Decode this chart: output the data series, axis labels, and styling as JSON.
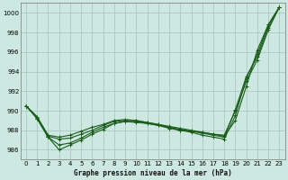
{
  "background_color": "#cce8e0",
  "grid_color": "#aac8c0",
  "line_color": "#1a5c1a",
  "xlabel": "Graphe pression niveau de la mer (hPa)",
  "ylim": [
    985.0,
    1001.0
  ],
  "xlim": [
    -0.5,
    23.5
  ],
  "yticks": [
    986,
    988,
    990,
    992,
    994,
    996,
    998,
    1000
  ],
  "xticks": [
    0,
    1,
    2,
    3,
    4,
    5,
    6,
    7,
    8,
    9,
    10,
    11,
    12,
    13,
    14,
    15,
    16,
    17,
    18,
    19,
    20,
    21,
    22,
    23
  ],
  "series": [
    [
      990.5,
      989.2,
      987.3,
      986.0,
      986.5,
      987.0,
      987.6,
      988.1,
      988.7,
      988.9,
      988.8,
      988.7,
      988.5,
      988.3,
      988.0,
      987.8,
      987.5,
      987.3,
      987.1,
      989.5,
      993.3,
      995.8,
      998.8,
      1000.6
    ],
    [
      990.5,
      989.3,
      987.4,
      987.1,
      987.2,
      987.6,
      988.0,
      988.5,
      988.9,
      989.0,
      989.0,
      988.8,
      988.6,
      988.4,
      988.2,
      988.0,
      987.8,
      987.6,
      987.4,
      989.0,
      992.5,
      996.2,
      998.8,
      1000.6
    ],
    [
      990.5,
      989.4,
      987.5,
      987.3,
      987.5,
      987.9,
      988.3,
      988.6,
      989.0,
      989.1,
      989.0,
      988.8,
      988.6,
      988.3,
      988.1,
      987.9,
      987.7,
      987.5,
      987.3,
      990.1,
      993.5,
      995.5,
      998.5,
      1000.6
    ],
    [
      990.5,
      989.2,
      987.3,
      986.5,
      986.7,
      987.2,
      987.8,
      988.3,
      988.7,
      988.9,
      988.9,
      988.7,
      988.5,
      988.2,
      988.0,
      987.9,
      987.8,
      987.6,
      987.5,
      990.0,
      993.0,
      995.2,
      998.3,
      1000.6
    ]
  ],
  "series_markers": [
    true,
    true,
    true,
    true
  ],
  "marker_every": [
    2,
    2,
    2,
    1
  ]
}
